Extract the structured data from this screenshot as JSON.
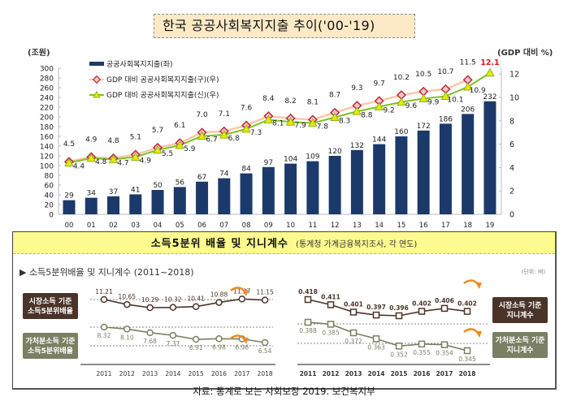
{
  "title": "한국 공공사회복지지출 추이('00-'19)",
  "chart_data": [
    {
      "type": "bar+line",
      "title": "한국 공공사회복지지출 추이('00-'19)",
      "left_axis_label": "(조원)",
      "right_axis_label": "(GDP 대비 %)",
      "left_ylim": [
        0,
        300
      ],
      "left_ticks": [
        0,
        20,
        40,
        60,
        80,
        100,
        120,
        140,
        160,
        180,
        200,
        220,
        240,
        260,
        280,
        300
      ],
      "right_ylim": [
        0,
        12
      ],
      "right_ticks": [
        0,
        2,
        4,
        6,
        8,
        10,
        12
      ],
      "categories": [
        "00",
        "01",
        "02",
        "03",
        "04",
        "05",
        "06",
        "07",
        "08",
        "09",
        "10",
        "11",
        "12",
        "13",
        "14",
        "15",
        "16",
        "17",
        "18",
        "19"
      ],
      "legend_position": "top-left",
      "series": [
        {
          "name": "공공사회복지지출(좌)",
          "type": "bar",
          "axis": "left",
          "color": "#1b3a6b",
          "values": [
            29,
            34,
            37,
            41,
            50,
            56,
            67,
            74,
            84,
            97,
            104,
            109,
            120,
            132,
            144,
            160,
            172,
            186,
            206,
            232
          ]
        },
        {
          "name": "GDP 대비 공공사회복지지출(구)(우)",
          "type": "line",
          "axis": "right",
          "color": "#f8c8a8",
          "marker_color": "#c0283c",
          "values": [
            4.5,
            4.9,
            4.8,
            5.1,
            5.7,
            6.1,
            7.0,
            7.1,
            7.6,
            8.4,
            8.2,
            8.1,
            8.7,
            9.3,
            9.7,
            10.2,
            10.5,
            10.7,
            11.5,
            null
          ]
        },
        {
          "name": "GDP 대비 공공사회복지지출(신)(우)",
          "type": "line",
          "axis": "right",
          "color": "#7cc21e",
          "marker_color": "#e8e800",
          "values": [
            4.4,
            4.8,
            4.7,
            4.9,
            5.5,
            5.9,
            6.7,
            6.8,
            7.3,
            8.1,
            7.9,
            7.8,
            8.3,
            8.8,
            9.2,
            9.6,
            9.9,
            10.1,
            10.9,
            12.1
          ]
        }
      ],
      "highlight_label": {
        "value": "12.1",
        "color": "#e8101c"
      }
    },
    {
      "type": "line",
      "title": "소득5분위배율 및 지니계수 (2011~2018)",
      "x": [
        "2011",
        "2012",
        "2013",
        "2014",
        "2015",
        "2016",
        "2017",
        "2018"
      ],
      "series": [
        {
          "name": "시장소득 기준 소득5분위배율",
          "color": "#4a3429",
          "values": [
            11.21,
            10.65,
            10.29,
            10.32,
            10.41,
            10.88,
            11.27,
            11.15
          ],
          "labels": [
            "11.21",
            "10.65",
            "10.29",
            "10.32",
            "10.41",
            "10.88",
            "11.27",
            "11.15"
          ]
        },
        {
          "name": "가처분소득 기준 소득5분위배율",
          "color": "#7b7f63",
          "values": [
            8.32,
            8.1,
            7.68,
            7.37,
            6.91,
            6.98,
            6.96,
            6.54
          ],
          "labels": [
            "8.32",
            "8.10",
            "7.68",
            "7.37",
            "6.91",
            "6.98",
            "6.96",
            "6.54"
          ]
        }
      ]
    },
    {
      "type": "line",
      "title": "지니계수 (2011~2018)",
      "x": [
        "2011",
        "2012",
        "2013",
        "2014",
        "2015",
        "2016",
        "2017",
        "2018"
      ],
      "series": [
        {
          "name": "시장소득 기준 지니계수",
          "color": "#4a3429",
          "values": [
            0.418,
            0.411,
            0.401,
            0.397,
            0.396,
            0.402,
            0.406,
            0.402
          ],
          "labels": [
            "0.418",
            "0.411",
            "0.401",
            "0.397",
            "0.396",
            "0.402",
            "0.406",
            "0.402"
          ]
        },
        {
          "name": "가처분소득 기준 지니계수",
          "color": "#7b7f63",
          "values": [
            0.388,
            0.385,
            0.372,
            0.363,
            0.352,
            0.355,
            0.354,
            0.345
          ],
          "labels": [
            "0.388",
            "0.385",
            "0.372",
            "0.363",
            "0.352",
            "0.355",
            "0.354",
            "0.345"
          ]
        }
      ]
    }
  ],
  "panel": {
    "heading_main": "소득5분위 배율 및 지니계수",
    "heading_sub": "(통계청 가계금융복지조사, 각 연도)",
    "sub_title": "▶ 소득5분위배율 및 지니계수 (2011~2018)",
    "unit_note": "(단위: 배)",
    "left_labels": [
      {
        "line1": "시장소득 기준",
        "line2": "소득5분위배율",
        "bg": "#4a3429"
      },
      {
        "line1": "가처분소득 기준",
        "line2": "소득5분위배율",
        "bg": "#7b7f63"
      }
    ],
    "right_labels": [
      {
        "line1": "시장소득 기준",
        "line2": "지니계수",
        "bg": "#4a3429"
      },
      {
        "line1": "가처분소득 기준",
        "line2": "지니계수",
        "bg": "#7b7f63"
      }
    ],
    "arrow_color": "#f08a24"
  },
  "source": "자료: 통계로 보는 사회보장 2019. 보건복지부"
}
